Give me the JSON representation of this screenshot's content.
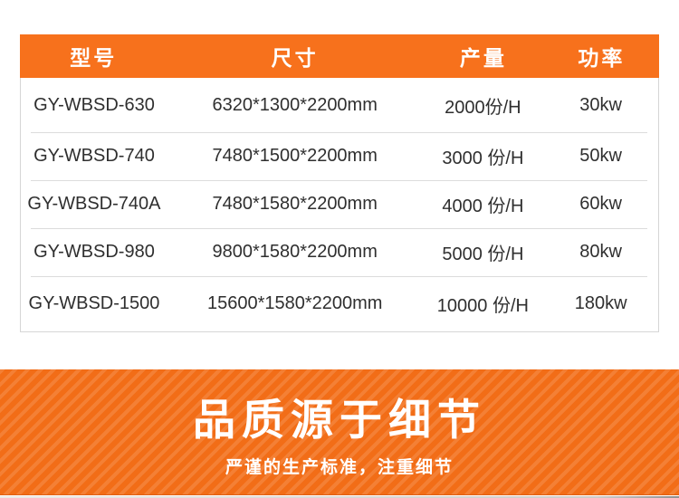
{
  "table": {
    "headers": [
      "型号",
      "尺寸",
      "产量",
      "功率"
    ],
    "rows": [
      {
        "model": "GY-WBSD-630",
        "size": "6320*1300*2200mm",
        "output": "2000份/H",
        "power": "30kw"
      },
      {
        "model": "GY-WBSD-740",
        "size": "7480*1500*2200mm",
        "output": "3000 份/H",
        "power": "50kw"
      },
      {
        "model": "GY-WBSD-740A",
        "size": "7480*1580*2200mm",
        "output": "4000 份/H",
        "power": "60kw"
      },
      {
        "model": "GY-WBSD-980",
        "size": "9800*1580*2200mm",
        "output": "5000 份/H",
        "power": "80kw"
      },
      {
        "model": "GY-WBSD-1500",
        "size": "15600*1580*2200mm",
        "output": "10000 份/H",
        "power": "180kw"
      }
    ]
  },
  "banner": {
    "title": "品质源于细节",
    "subtitle": "严谨的生产标准，注重细节"
  },
  "colors": {
    "header_orange": "#f7711c",
    "banner_orange": "#f26d17",
    "row_text": "#2f2f2f",
    "border_gray": "#d6d6d6",
    "separator_gray": "#dcdcdc"
  }
}
